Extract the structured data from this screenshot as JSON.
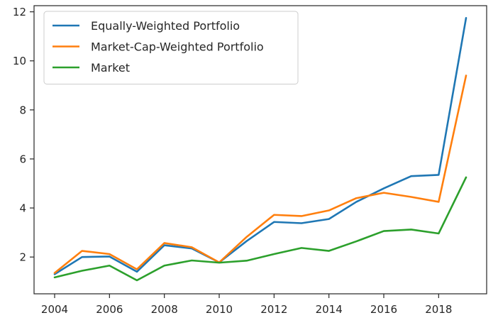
{
  "chart_data": {
    "type": "line",
    "title": "",
    "xlabel": "",
    "ylabel": "",
    "x": [
      2004,
      2005,
      2006,
      2007,
      2008,
      2009,
      2010,
      2011,
      2012,
      2013,
      2014,
      2015,
      2016,
      2017,
      2018,
      2019
    ],
    "xlim": [
      2003.25,
      2019.75
    ],
    "ylim": [
      0.5,
      12.25
    ],
    "xticks": [
      2004,
      2006,
      2008,
      2010,
      2012,
      2014,
      2016,
      2018
    ],
    "yticks": [
      2,
      4,
      6,
      8,
      10,
      12
    ],
    "grid": false,
    "legend_position": "top-left",
    "series": [
      {
        "name": "Equally-Weighted Portfolio",
        "color": "#1f77b4",
        "values": [
          1.3,
          2.0,
          2.02,
          1.4,
          2.48,
          2.35,
          1.78,
          2.65,
          3.43,
          3.38,
          3.55,
          4.25,
          4.8,
          5.3,
          5.35,
          11.75
        ]
      },
      {
        "name": "Market-Cap-Weighted Portfolio",
        "color": "#ff7f0e",
        "values": [
          1.35,
          2.25,
          2.12,
          1.5,
          2.57,
          2.4,
          1.78,
          2.82,
          3.72,
          3.67,
          3.9,
          4.4,
          4.62,
          4.45,
          4.25,
          9.4
        ]
      },
      {
        "name": "Market",
        "color": "#2ca02c",
        "values": [
          1.17,
          1.44,
          1.65,
          1.05,
          1.65,
          1.86,
          1.77,
          1.85,
          2.12,
          2.37,
          2.25,
          2.64,
          3.06,
          3.12,
          2.96,
          5.25
        ]
      }
    ]
  }
}
